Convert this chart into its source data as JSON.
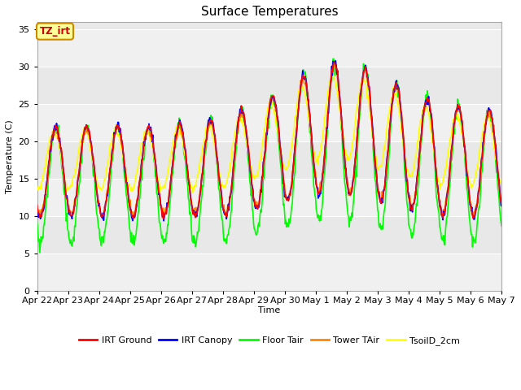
{
  "title": "Surface Temperatures",
  "xlabel": "Time",
  "ylabel": "Temperature (C)",
  "ylim": [
    0,
    36
  ],
  "yticks": [
    0,
    5,
    10,
    15,
    20,
    25,
    30,
    35
  ],
  "fig_bg": "#ffffff",
  "plot_bg": "#e8e8e8",
  "annotation_text": "TZ_irt",
  "annotation_color": "#cc0000",
  "annotation_bg": "#ffff99",
  "annotation_border": "#cc8800",
  "series": {
    "IRT Ground": {
      "color": "#ff0000",
      "lw": 1.2
    },
    "IRT Canopy": {
      "color": "#0000ff",
      "lw": 1.2
    },
    "Floor Tair": {
      "color": "#00ff00",
      "lw": 1.2
    },
    "Tower TAir": {
      "color": "#ff8800",
      "lw": 1.2
    },
    "TsoilD_2cm": {
      "color": "#ffff00",
      "lw": 1.2
    }
  },
  "x_tick_labels": [
    "Apr 22",
    "Apr 23",
    "Apr 24",
    "Apr 25",
    "Apr 26",
    "Apr 27",
    "Apr 28",
    "Apr 29",
    "Apr 30",
    "May 1",
    "May 2",
    "May 3",
    "May 4",
    "May 5",
    "May 6",
    "May 7"
  ],
  "grid_color": "#ffffff",
  "grid_band_color": "#d8d8d8",
  "spine_color": "#aaaaaa"
}
